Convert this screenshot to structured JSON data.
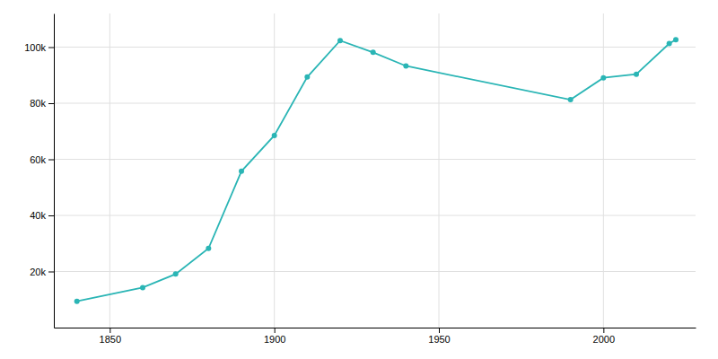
{
  "chart_data": {
    "type": "line",
    "x": [
      1840,
      1860,
      1870,
      1880,
      1890,
      1900,
      1910,
      1920,
      1930,
      1940,
      1990,
      2000,
      2010,
      2020,
      2022
    ],
    "values": [
      9367,
      14257,
      19083,
      28233,
      55727,
      68513,
      89336,
      102320,
      98123,
      93293,
      81245,
      89050,
      90329,
      101253,
      102629
    ],
    "color": "#2ab5b5",
    "marker": "circle",
    "xlim": [
      1833,
      2028
    ],
    "xticks": [
      1850,
      1900,
      1950,
      2000
    ],
    "ylim": [
      0,
      112000
    ],
    "yticks": [
      {
        "value": 20000,
        "label": "20k"
      },
      {
        "value": 40000,
        "label": "40k"
      },
      {
        "value": 60000,
        "label": "60k"
      },
      {
        "value": 80000,
        "label": "80k"
      },
      {
        "value": 100000,
        "label": "100k"
      }
    ],
    "grid": true
  }
}
